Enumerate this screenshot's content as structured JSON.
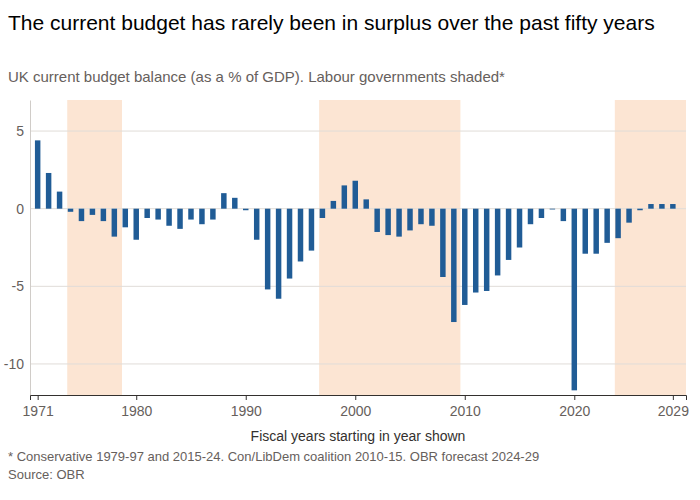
{
  "chart_data": {
    "type": "bar",
    "title": "The current budget has rarely been in surplus over the past fifty years",
    "subtitle": "UK current budget balance (as a % of GDP). Labour governments shaded*",
    "x_label": "Fiscal years starting in year shown",
    "note": "* Conservative 1979-97 and 2015-24. Con/LibDem coalition 2010-15. OBR forecast 2024-29",
    "source": "Source: OBR",
    "x": [
      1971,
      1972,
      1973,
      1974,
      1975,
      1976,
      1977,
      1978,
      1979,
      1980,
      1981,
      1982,
      1983,
      1984,
      1985,
      1986,
      1987,
      1988,
      1989,
      1990,
      1991,
      1992,
      1993,
      1994,
      1995,
      1996,
      1997,
      1998,
      1999,
      2000,
      2001,
      2002,
      2003,
      2004,
      2005,
      2006,
      2007,
      2008,
      2009,
      2010,
      2011,
      2012,
      2013,
      2014,
      2015,
      2016,
      2017,
      2018,
      2019,
      2020,
      2021,
      2022,
      2023,
      2024,
      2025,
      2026,
      2027,
      2028,
      2029
    ],
    "values": [
      4.4,
      2.3,
      1.1,
      -0.2,
      -0.8,
      -0.4,
      -0.8,
      -1.8,
      -1.2,
      -2.0,
      -0.6,
      -0.7,
      -1.1,
      -1.3,
      -0.7,
      -1.0,
      -0.7,
      1.0,
      0.7,
      -0.1,
      -2.0,
      -5.2,
      -5.8,
      -4.5,
      -3.4,
      -2.7,
      -0.6,
      0.5,
      1.5,
      1.8,
      0.6,
      -1.5,
      -1.7,
      -1.8,
      -1.4,
      -1.0,
      -1.1,
      -4.4,
      -7.3,
      -6.2,
      -5.4,
      -5.3,
      -4.3,
      -3.3,
      -2.5,
      -1.0,
      -0.6,
      -0.05,
      -0.8,
      -11.7,
      -2.9,
      -2.9,
      -2.2,
      -1.9,
      -0.9,
      -0.1,
      0.3,
      0.3,
      0.3
    ],
    "color": "#205c96",
    "shaded_periods": [
      [
        1973.7,
        1978.7
      ],
      [
        1996.7,
        2009.6
      ],
      [
        2023.7,
        2030.2
      ]
    ],
    "xlim": [
      1970.3,
      2030.2
    ],
    "ylim": [
      -12,
      7
    ],
    "xticks": [
      1971,
      1980,
      1990,
      2000,
      2010,
      2020,
      2029
    ],
    "yticks": [
      5,
      0,
      -5,
      -10
    ],
    "grid": true
  }
}
